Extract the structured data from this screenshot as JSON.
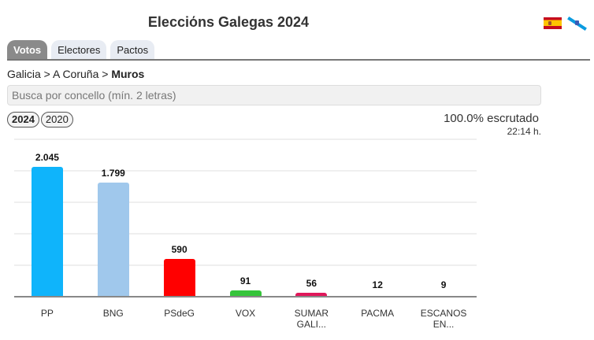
{
  "header": {
    "title": "Elecciόns Galegas 2024"
  },
  "language_flags": [
    {
      "name": "spain-flag-icon",
      "label": "Español"
    },
    {
      "name": "galicia-flag-icon",
      "label": "Galego"
    }
  ],
  "tabs": [
    {
      "label": "Votos",
      "active": true
    },
    {
      "label": "Electores",
      "active": false
    },
    {
      "label": "Pactos",
      "active": false
    }
  ],
  "breadcrumb": {
    "level1": "Galicia",
    "sep": " > ",
    "level2": "A Coruña",
    "current": "Muros"
  },
  "search": {
    "placeholder": "Busca por concello (mín. 2 letras)",
    "value": ""
  },
  "years": [
    {
      "label": "2024",
      "active": true
    },
    {
      "label": "2020",
      "active": false
    }
  ],
  "status": {
    "scrutiny": "100.0% escrutado",
    "time": "22:14 h."
  },
  "colors": {
    "PP": "#0fb4fb",
    "BNG": "#a0c8ec",
    "PSdeG": "#ff0000",
    "VOX": "#35c43a",
    "SUMAR": "#e0175a",
    "PACMA": "#2f9e6e",
    "ESCANOS": "#888888"
  },
  "chart_data": {
    "type": "bar",
    "title": "",
    "xlabel": "",
    "ylabel": "",
    "categories": [
      "PP",
      "BNG",
      "PSdeG",
      "VOX",
      "SUMAR GALI...",
      "PACMA",
      "ESCANOS EN..."
    ],
    "category_lines": [
      [
        "PP"
      ],
      [
        "BNG"
      ],
      [
        "PSdeG"
      ],
      [
        "VOX"
      ],
      [
        "SUMAR",
        "GALI..."
      ],
      [
        "PACMA"
      ],
      [
        "ESCANOS",
        "EN..."
      ]
    ],
    "values": [
      2045,
      1799,
      590,
      91,
      56,
      12,
      9
    ],
    "value_labels": [
      "2.045",
      "1.799",
      "590",
      "91",
      "56",
      "12",
      "9"
    ],
    "bar_colors": [
      "#0fb4fb",
      "#a0c8ec",
      "#ff0000",
      "#35c43a",
      "#e0175a",
      "#2f9e6e",
      "#888888"
    ],
    "ylim": [
      0,
      2500
    ],
    "gridlines": [
      500,
      1000,
      1500,
      2000,
      2500
    ],
    "grid": true,
    "y_tick_labels_visible": false,
    "legend": "none"
  }
}
